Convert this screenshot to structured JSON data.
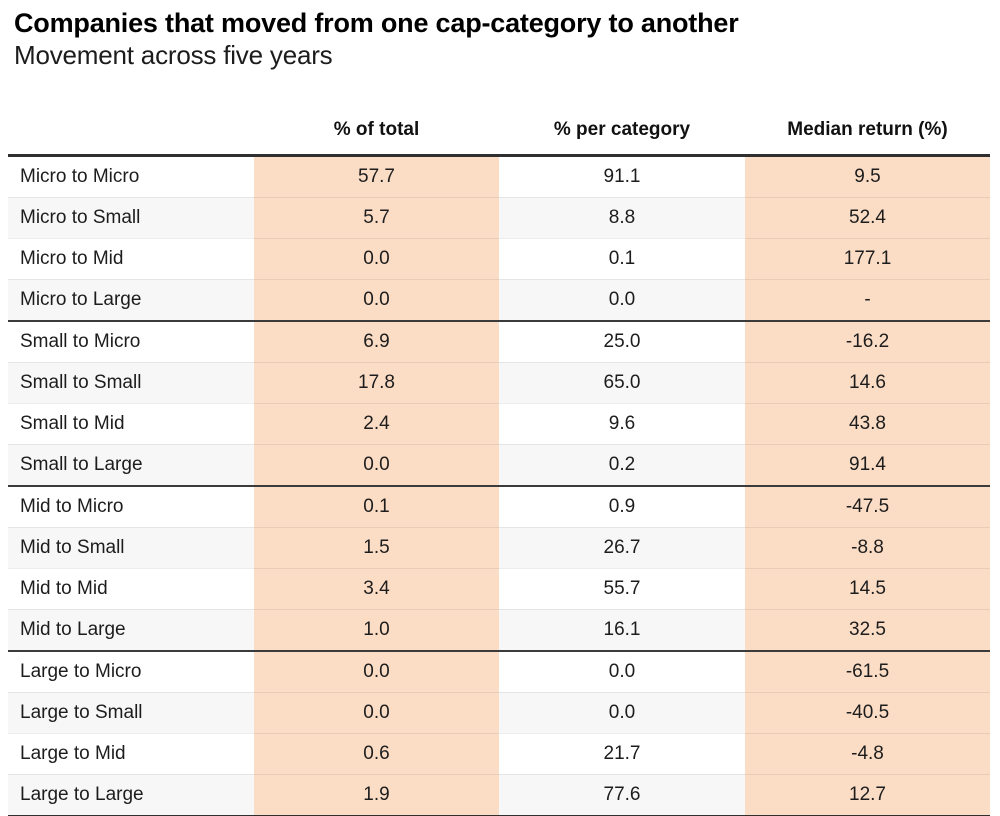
{
  "colors": {
    "highlight": "#fbdcc5",
    "stripe": "#f7f7f7",
    "heavy_border": "#2f2f2f",
    "group_border": "#3b3b3b",
    "text": "#1d1d1d"
  },
  "chart_data": {
    "type": "table",
    "title": "Companies that moved from one cap-category to another",
    "subtitle": "Movement across five years",
    "columns": [
      "",
      "% of total",
      "% per category",
      "Median return (%)"
    ],
    "highlighted_columns": [
      "% of total",
      "Median return (%)"
    ],
    "group_size": 4,
    "rows": [
      [
        "Micro to Micro",
        57.7,
        91.1,
        9.5
      ],
      [
        "Micro to Small",
        5.7,
        8.8,
        52.4
      ],
      [
        "Micro to Mid",
        0.0,
        0.1,
        177.1
      ],
      [
        "Micro to Large",
        0.0,
        0.0,
        "-"
      ],
      [
        "Small to Micro",
        6.9,
        25.0,
        -16.2
      ],
      [
        "Small to Small",
        17.8,
        65.0,
        14.6
      ],
      [
        "Small to Mid",
        2.4,
        9.6,
        43.8
      ],
      [
        "Small to Large",
        0.0,
        0.2,
        91.4
      ],
      [
        "Mid to Micro",
        0.1,
        0.9,
        -47.5
      ],
      [
        "Mid to Small",
        1.5,
        26.7,
        -8.8
      ],
      [
        "Mid to Mid",
        3.4,
        55.7,
        14.5
      ],
      [
        "Mid to Large",
        1.0,
        16.1,
        32.5
      ],
      [
        "Large to Micro",
        0.0,
        0.0,
        -61.5
      ],
      [
        "Large to Small",
        0.0,
        0.0,
        -40.5
      ],
      [
        "Large to Mid",
        0.6,
        21.7,
        -4.8
      ],
      [
        "Large to Large",
        1.9,
        77.6,
        12.7
      ]
    ]
  }
}
